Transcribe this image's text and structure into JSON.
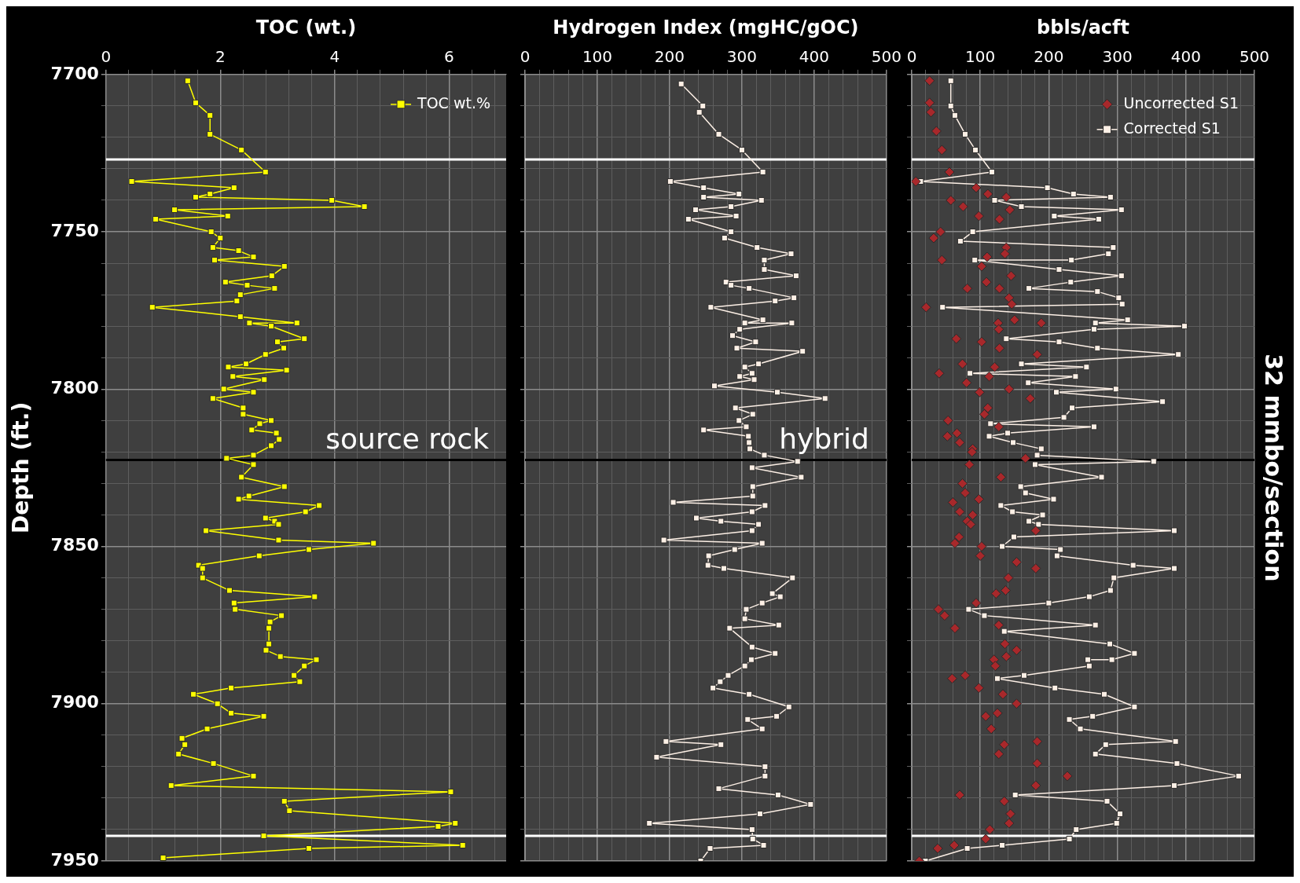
{
  "chart_data": [
    {
      "type": "line",
      "xlabel": "TOC (wt.)",
      "ylabel": "Depth (ft.)",
      "xlim": [
        0,
        7
      ],
      "ylim": [
        7950,
        7700
      ],
      "grid": true,
      "legend": "top right",
      "marker": "square",
      "xticks": [
        0,
        {
          "value": 0.4,
          "label": null
        },
        {
          "value": 0.8,
          "label": null
        },
        {
          "value": 1.2,
          "label": null
        },
        {
          "value": 1.6,
          "label": null
        },
        2,
        {
          "value": 2.4,
          "label": null
        },
        {
          "value": 2.8,
          "label": null
        },
        {
          "value": 3.2,
          "label": null
        },
        {
          "value": 3.6,
          "label": null
        },
        4,
        {
          "value": 4.4,
          "label": null
        },
        {
          "value": 4.8,
          "label": null
        },
        {
          "value": 5.2,
          "label": null
        },
        {
          "value": 5.6,
          "label": null
        },
        6,
        {
          "value": 6.4,
          "label": null
        },
        {
          "value": 6.8,
          "label": null
        }
      ],
      "yticks": [
        7700,
        {
          "value": 7710,
          "label": null
        },
        {
          "value": 7720,
          "label": null
        },
        {
          "value": 7730,
          "label": null
        },
        {
          "value": 7740,
          "label": null
        },
        7750,
        {
          "value": 7760,
          "label": null
        },
        {
          "value": 7770,
          "label": null
        },
        {
          "value": 7780,
          "label": null
        },
        {
          "value": 7790,
          "label": null
        },
        7800,
        {
          "value": 7810,
          "label": null
        },
        {
          "value": 7820,
          "label": null
        },
        {
          "value": 7830,
          "label": null
        },
        {
          "value": 7840,
          "label": null
        },
        7850,
        {
          "value": 7860,
          "label": null
        },
        {
          "value": 7870,
          "label": null
        },
        {
          "value": 7880,
          "label": null
        },
        {
          "value": 7890,
          "label": null
        },
        7900,
        {
          "value": 7910,
          "label": null
        },
        {
          "value": 7920,
          "label": null
        },
        {
          "value": 7930,
          "label": null
        },
        {
          "value": 7940,
          "label": null
        },
        7950
      ],
      "ref_lines": [
        {
          "axis": "y",
          "value": 7727,
          "color": "#ffffff"
        },
        {
          "axis": "y",
          "value": 7942,
          "color": "#ffffff"
        },
        {
          "axis": "y",
          "value": 7822.5,
          "color": "#000000",
          "label": "source rock"
        }
      ],
      "series": [
        {
          "name": "TOC wt.%",
          "color": "#ffff00",
          "x": [
            1.43,
            1.57,
            1.82,
            1.82,
            2.37,
            2.79,
            0.45,
            2.24,
            1.82,
            1.57,
            3.95,
            4.52,
            1.2,
            2.13,
            0.87,
            1.84,
            2.0,
            1.87,
            2.32,
            2.58,
            1.9,
            3.12,
            2.9,
            2.09,
            2.47,
            2.95,
            2.35,
            2.29,
            0.81,
            2.35,
            3.34,
            2.51,
            2.89,
            3.47,
            3.0,
            3.11,
            2.79,
            2.45,
            2.14,
            3.16,
            2.22,
            2.77,
            2.06,
            2.58,
            1.87,
            2.4,
            2.4,
            2.89,
            2.69,
            2.55,
            2.98,
            3.03,
            2.89,
            2.58,
            2.11,
            2.58,
            2.37,
            3.12,
            2.5,
            2.32,
            3.73,
            3.49,
            2.79,
            2.95,
            3.02,
            1.75,
            3.02,
            4.68,
            3.55,
            2.68,
            1.62,
            1.69,
            1.69,
            2.16,
            3.65,
            2.24,
            2.26,
            3.07,
            2.87,
            2.85,
            2.85,
            2.8,
            3.05,
            3.68,
            3.47,
            3.29,
            3.39,
            2.19,
            1.53,
            1.95,
            2.19,
            2.76,
            1.77,
            1.33,
            1.38,
            1.27,
            1.88,
            2.58,
            1.14,
            6.03,
            3.12,
            3.21,
            6.11,
            5.81,
            2.76,
            6.24,
            3.55,
            1.0
          ],
          "values": [
            7702,
            7709,
            7713,
            7719,
            7724,
            7731,
            7734,
            7736,
            7738,
            7739,
            7740,
            7742,
            7743,
            7745,
            7746,
            7750,
            7752,
            7755,
            7756,
            7758,
            7759,
            7761,
            7764,
            7766,
            7767,
            7768,
            7770,
            7772,
            7774,
            7777,
            7779,
            7779,
            7780,
            7784,
            7785,
            7787,
            7789,
            7792,
            7793,
            7794,
            7796,
            7797,
            7800,
            7801,
            7803,
            7806,
            7808,
            7810,
            7811,
            7813,
            7814,
            7816,
            7818,
            7821,
            7822,
            7824,
            7828,
            7831,
            7834,
            7835,
            7837,
            7839,
            7841,
            7842,
            7843,
            7845,
            7848,
            7849,
            7851,
            7853,
            7856,
            7857,
            7860,
            7864,
            7866,
            7868,
            7870,
            7872,
            7874,
            7876,
            7881,
            7883,
            7885,
            7886,
            7888,
            7891,
            7893,
            7895,
            7897,
            7900,
            7903,
            7904,
            7908,
            7911,
            7913,
            7916,
            7919,
            7923,
            7926,
            7928,
            7931,
            7934,
            7938,
            7939,
            7942,
            7945,
            7946,
            7949
          ]
        }
      ]
    },
    {
      "type": "line",
      "xlabel": "Hydrogen Index (mgHC/gOC)",
      "xlim": [
        0,
        500
      ],
      "ylim": [
        7950,
        7700
      ],
      "grid": true,
      "marker": "square",
      "tick_labels": "x",
      "xticks": [
        0,
        {
          "value": 20,
          "label": null
        },
        {
          "value": 40,
          "label": null
        },
        {
          "value": 60,
          "label": null
        },
        {
          "value": 80,
          "label": null
        },
        100,
        {
          "value": 120,
          "label": null
        },
        {
          "value": 140,
          "label": null
        },
        {
          "value": 160,
          "label": null
        },
        {
          "value": 180,
          "label": null
        },
        200,
        {
          "value": 220,
          "label": null
        },
        {
          "value": 240,
          "label": null
        },
        {
          "value": 260,
          "label": null
        },
        {
          "value": 280,
          "label": null
        },
        300,
        {
          "value": 320,
          "label": null
        },
        {
          "value": 340,
          "label": null
        },
        {
          "value": 360,
          "label": null
        },
        {
          "value": 380,
          "label": null
        },
        400,
        {
          "value": 420,
          "label": null
        },
        {
          "value": 440,
          "label": null
        },
        {
          "value": 460,
          "label": null
        },
        {
          "value": 480,
          "label": null
        },
        500
      ],
      "yticks": [
        7700,
        {
          "value": 7710,
          "label": null
        },
        {
          "value": 7720,
          "label": null
        },
        {
          "value": 7730,
          "label": null
        },
        {
          "value": 7740,
          "label": null
        },
        7750,
        {
          "value": 7760,
          "label": null
        },
        {
          "value": 7770,
          "label": null
        },
        {
          "value": 7780,
          "label": null
        },
        {
          "value": 7790,
          "label": null
        },
        7800,
        {
          "value": 7810,
          "label": null
        },
        {
          "value": 7820,
          "label": null
        },
        {
          "value": 7830,
          "label": null
        },
        {
          "value": 7840,
          "label": null
        },
        7850,
        {
          "value": 7860,
          "label": null
        },
        {
          "value": 7870,
          "label": null
        },
        {
          "value": 7880,
          "label": null
        },
        {
          "value": 7890,
          "label": null
        },
        7900,
        {
          "value": 7910,
          "label": null
        },
        {
          "value": 7920,
          "label": null
        },
        {
          "value": 7930,
          "label": null
        },
        {
          "value": 7940,
          "label": null
        },
        7950
      ],
      "ref_lines": [
        {
          "axis": "y",
          "value": 7727,
          "color": "#ffffff"
        },
        {
          "axis": "y",
          "value": 7942,
          "color": "#ffffff"
        },
        {
          "axis": "y",
          "value": 7822.5,
          "color": "#000000",
          "label": "hybrid"
        }
      ],
      "series": [
        {
          "color": "#fdf0e6",
          "x": [
            216,
            246,
            241,
            268,
            300,
            329,
            201,
            247,
            296,
            247,
            327,
            285,
            236,
            292,
            226,
            285,
            276,
            321,
            368,
            331,
            331,
            375,
            278,
            285,
            310,
            372,
            346,
            257,
            329,
            304,
            369,
            297,
            287,
            319,
            293,
            384,
            323,
            304,
            314,
            297,
            317,
            262,
            349,
            415,
            291,
            315,
            296,
            306,
            247,
            309,
            310,
            311,
            331,
            377,
            314,
            382,
            315,
            315,
            205,
            332,
            314,
            237,
            271,
            323,
            314,
            192,
            328,
            290,
            254,
            253,
            275,
            370,
            342,
            353,
            328,
            306,
            304,
            351,
            283,
            314,
            346,
            313,
            304,
            281,
            270,
            260,
            310,
            365,
            348,
            308,
            328,
            195,
            271,
            182,
            332,
            332,
            268,
            350,
            395,
            325,
            172,
            314,
            315,
            330,
            256,
            243
          ],
          "values": [
            7703,
            7710,
            7712,
            7719,
            7724,
            7731,
            7734,
            7736,
            7738,
            7739,
            7740,
            7742,
            7743,
            7745,
            7746,
            7750,
            7752,
            7755,
            7757,
            7759,
            7762,
            7764,
            7766,
            7767,
            7768,
            7771,
            7772,
            7774,
            7778,
            7779,
            7779,
            7781,
            7783,
            7785,
            7787,
            7788,
            7792,
            7793,
            7795,
            7796,
            7797,
            7799,
            7801,
            7803,
            7806,
            7808,
            7810,
            7812,
            7813,
            7815,
            7817,
            7819,
            7821,
            7823,
            7825,
            7828,
            7831,
            7834,
            7836,
            7837,
            7839,
            7841,
            7842,
            7843,
            7845,
            7848,
            7849,
            7851,
            7853,
            7856,
            7857,
            7860,
            7865,
            7866,
            7868,
            7870,
            7873,
            7875,
            7876,
            7882,
            7884,
            7886,
            7888,
            7891,
            7893,
            7895,
            7897,
            7901,
            7904,
            7905,
            7908,
            7912,
            7913,
            7917,
            7920,
            7923,
            7927,
            7929,
            7932,
            7935,
            7938,
            7940,
            7943,
            7945,
            7946,
            7950
          ]
        }
      ]
    },
    {
      "type": "line",
      "xlabel": "bbls/acft",
      "xlim": [
        0,
        500
      ],
      "ylim": [
        7950,
        7700
      ],
      "grid": true,
      "legend": "top right",
      "tick_labels": "x",
      "annotations": [
        "32 mmbo/section"
      ],
      "xticks": [
        0,
        {
          "value": 20,
          "label": null
        },
        {
          "value": 40,
          "label": null
        },
        {
          "value": 60,
          "label": null
        },
        {
          "value": 80,
          "label": null
        },
        100,
        {
          "value": 120,
          "label": null
        },
        {
          "value": 140,
          "label": null
        },
        {
          "value": 160,
          "label": null
        },
        {
          "value": 180,
          "label": null
        },
        200,
        {
          "value": 220,
          "label": null
        },
        {
          "value": 240,
          "label": null
        },
        {
          "value": 260,
          "label": null
        },
        {
          "value": 280,
          "label": null
        },
        300,
        {
          "value": 320,
          "label": null
        },
        {
          "value": 340,
          "label": null
        },
        {
          "value": 360,
          "label": null
        },
        {
          "value": 380,
          "label": null
        },
        400,
        {
          "value": 420,
          "label": null
        },
        {
          "value": 440,
          "label": null
        },
        {
          "value": 460,
          "label": null
        },
        {
          "value": 480,
          "label": null
        },
        500
      ],
      "yticks": [
        7700,
        {
          "value": 7710,
          "label": null
        },
        {
          "value": 7720,
          "label": null
        },
        {
          "value": 7730,
          "label": null
        },
        {
          "value": 7740,
          "label": null
        },
        7750,
        {
          "value": 7760,
          "label": null
        },
        {
          "value": 7770,
          "label": null
        },
        {
          "value": 7780,
          "label": null
        },
        {
          "value": 7790,
          "label": null
        },
        7800,
        {
          "value": 7810,
          "label": null
        },
        {
          "value": 7820,
          "label": null
        },
        {
          "value": 7830,
          "label": null
        },
        {
          "value": 7840,
          "label": null
        },
        7850,
        {
          "value": 7860,
          "label": null
        },
        {
          "value": 7870,
          "label": null
        },
        {
          "value": 7880,
          "label": null
        },
        {
          "value": 7890,
          "label": null
        },
        7900,
        {
          "value": 7910,
          "label": null
        },
        {
          "value": 7920,
          "label": null
        },
        {
          "value": 7930,
          "label": null
        },
        {
          "value": 7940,
          "label": null
        },
        7950
      ],
      "ref_lines": [
        {
          "axis": "y",
          "value": 7727,
          "color": "#ffffff"
        },
        {
          "axis": "y",
          "value": 7942,
          "color": "#ffffff"
        },
        {
          "axis": "y",
          "value": 7822.5,
          "color": "#000000"
        }
      ],
      "series": [
        {
          "name": "Uncorrected S1",
          "type": "scatter",
          "marker": "diamond",
          "color": "#a8282b",
          "x": [
            26,
            26,
            28,
            36,
            44,
            55,
            6,
            94,
            111,
            138,
            57,
            75,
            143,
            98,
            128,
            42,
            32,
            138,
            136,
            110,
            44,
            102,
            145,
            109,
            81,
            128,
            142,
            146,
            21,
            150,
            126,
            189,
            127,
            65,
            102,
            128,
            183,
            74,
            121,
            40,
            113,
            80,
            142,
            99,
            173,
            111,
            106,
            53,
            127,
            66,
            52,
            70,
            89,
            88,
            166,
            84,
            130,
            74,
            78,
            98,
            60,
            70,
            89,
            81,
            86,
            181,
            69,
            63,
            102,
            100,
            153,
            181,
            141,
            137,
            123,
            94,
            39,
            48,
            127,
            63,
            136,
            153,
            138,
            120,
            122,
            78,
            59,
            98,
            133,
            153,
            125,
            108,
            116,
            183,
            135,
            127,
            183,
            227,
            181,
            70,
            135,
            144,
            142,
            114,
            108,
            62,
            38,
            11
          ],
          "values": [
            7702,
            7709,
            7712,
            7718,
            7724,
            7731,
            7734,
            7736,
            7738,
            7739,
            7740,
            7742,
            7743,
            7745,
            7746,
            7750,
            7752,
            7755,
            7757,
            7758,
            7759,
            7761,
            7764,
            7766,
            7768,
            7768,
            7771,
            7773,
            7774,
            7778,
            7779,
            7779,
            7781,
            7784,
            7785,
            7787,
            7789,
            7792,
            7793,
            7795,
            7796,
            7798,
            7800,
            7801,
            7803,
            7806,
            7808,
            7810,
            7812,
            7814,
            7815,
            7817,
            7819,
            7820,
            7822,
            7824,
            7828,
            7830,
            7833,
            7835,
            7836,
            7839,
            7840,
            7842,
            7843,
            7845,
            7847,
            7849,
            7850,
            7853,
            7855,
            7857,
            7860,
            7864,
            7865,
            7868,
            7870,
            7872,
            7875,
            7876,
            7881,
            7883,
            7885,
            7886,
            7888,
            7891,
            7892,
            7895,
            7897,
            7900,
            7903,
            7904,
            7908,
            7912,
            7913,
            7916,
            7919,
            7923,
            7926,
            7929,
            7931,
            7935,
            7938,
            7940,
            7943,
            7945,
            7946,
            7950
          ]
        },
        {
          "name": "Corrected S1",
          "marker": "square",
          "color": "#fdf0e6",
          "x": [
            57,
            57,
            63,
            78,
            93,
            117,
            13,
            198,
            236,
            290,
            121,
            160,
            306,
            208,
            273,
            89,
            71,
            294,
            287,
            233,
            92,
            215,
            306,
            232,
            171,
            271,
            302,
            307,
            45,
            315,
            268,
            398,
            266,
            138,
            215,
            271,
            389,
            160,
            255,
            85,
            239,
            170,
            298,
            211,
            366,
            234,
            222,
            115,
            266,
            140,
            113,
            148,
            189,
            183,
            353,
            180,
            277,
            159,
            166,
            207,
            130,
            147,
            191,
            171,
            185,
            383,
            149,
            132,
            217,
            212,
            323,
            383,
            295,
            290,
            259,
            200,
            83,
            106,
            268,
            135,
            289,
            325,
            292,
            257,
            259,
            164,
            125,
            209,
            281,
            325,
            264,
            230,
            246,
            385,
            283,
            268,
            387,
            477,
            383,
            151,
            285,
            304,
            299,
            240,
            230,
            132,
            81,
            20
          ],
          "values": [
            7702,
            7710,
            7713,
            7719,
            7724,
            7731,
            7734,
            7736,
            7738,
            7739,
            7740,
            7742,
            7743,
            7745,
            7746,
            7750,
            7753,
            7755,
            7757,
            7759,
            7759,
            7762,
            7764,
            7766,
            7768,
            7769,
            7771,
            7773,
            7774,
            7778,
            7779,
            7780,
            7781,
            7784,
            7785,
            7787,
            7789,
            7792,
            7793,
            7795,
            7796,
            7798,
            7800,
            7801,
            7804,
            7806,
            7809,
            7811,
            7812,
            7814,
            7815,
            7817,
            7819,
            7821,
            7823,
            7824,
            7828,
            7831,
            7833,
            7835,
            7837,
            7839,
            7840,
            7842,
            7843,
            7845,
            7847,
            7850,
            7851,
            7853,
            7856,
            7857,
            7860,
            7864,
            7866,
            7868,
            7870,
            7872,
            7875,
            7877,
            7881,
            7884,
            7886,
            7886,
            7888,
            7891,
            7892,
            7895,
            7897,
            7901,
            7904,
            7905,
            7908,
            7912,
            7913,
            7916,
            7919,
            7923,
            7926,
            7929,
            7931,
            7935,
            7938,
            7940,
            7943,
            7945,
            7946,
            7950
          ]
        }
      ]
    }
  ]
}
